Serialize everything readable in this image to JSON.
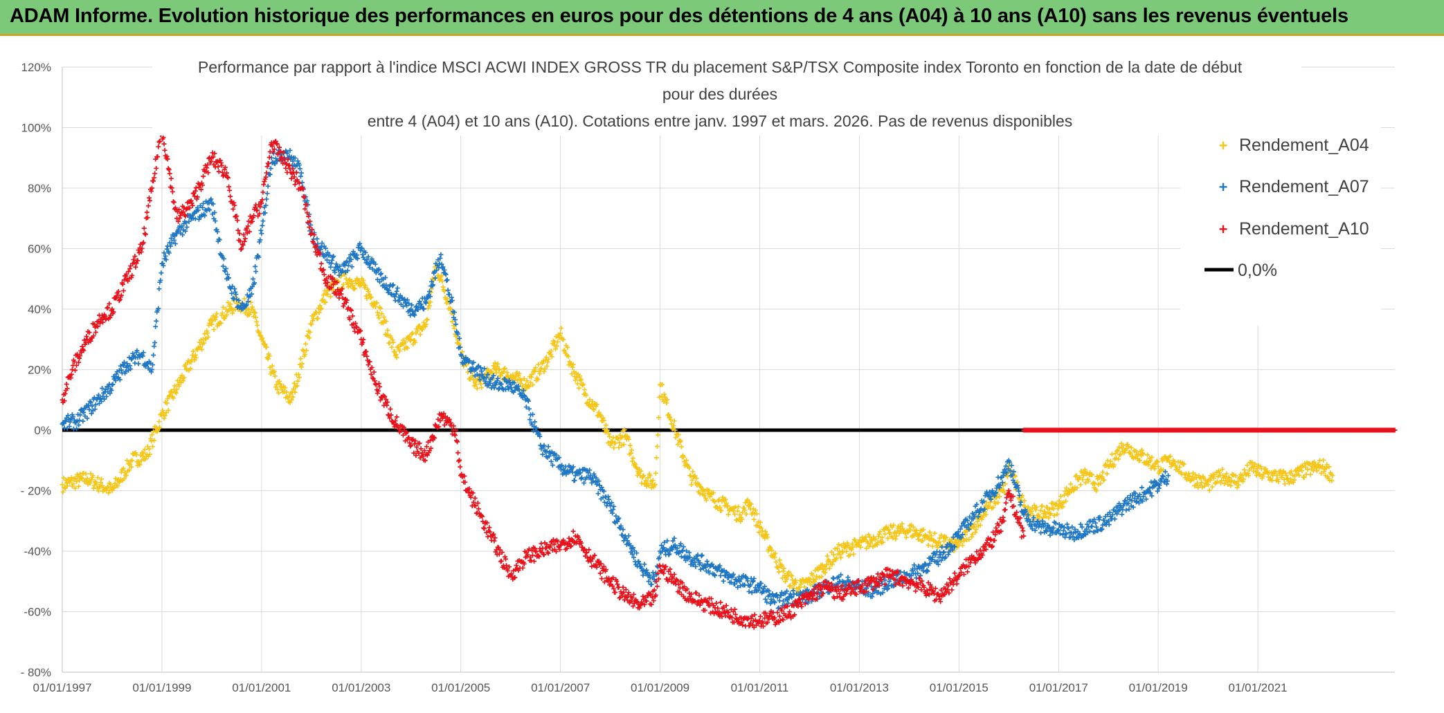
{
  "banner": {
    "title": "ADAM Informe. Evolution historique des performances en euros pour des détentions de 4 ans (A04) à 10 ans (A10) sans les revenus éventuels"
  },
  "chart_data": {
    "type": "scatter",
    "title_lines": [
      "Performance  par rapport à l'indice MSCI ACWI INDEX GROSS TR  du placement S&P/TSX Composite index Toronto en fonction de la date de début",
      "pour des durées",
      "entre 4 (A04) et 10 ans (A10). Cotations entre janv. 1997 et mars. 2026. Pas de revenus disponibles"
    ],
    "xlabel": "",
    "ylabel": "",
    "xlim": [
      1997.0,
      2023.75
    ],
    "ylim": [
      -80,
      120
    ],
    "x_ticks": [
      1997,
      1999,
      2001,
      2003,
      2005,
      2007,
      2009,
      2011,
      2013,
      2015,
      2017,
      2019,
      2021
    ],
    "x_tick_labels": [
      "01/01/1997",
      "01/01/1999",
      "01/01/2001",
      "01/01/2003",
      "01/01/2005",
      "01/01/2007",
      "01/01/2009",
      "01/01/2011",
      "01/01/2013",
      "01/01/2015",
      "01/01/2017",
      "01/01/2019",
      "01/01/2021"
    ],
    "y_ticks": [
      120,
      100,
      80,
      60,
      40,
      20,
      0,
      -20,
      -40,
      -60,
      -80
    ],
    "y_tick_labels": [
      "120%",
      "100%",
      "80%",
      "60%",
      "40%",
      "20%",
      "0%",
      "- 20%",
      "-40%",
      "-60%",
      "- 80%"
    ],
    "grid": true,
    "legend_position": "top-right",
    "reference_line": {
      "name": "0,0%",
      "y": 0,
      "color": "#000000"
    },
    "series": [
      {
        "name": "Rendement_A04",
        "color": "#f5c518",
        "x": [
          1997.0,
          1997.5,
          1998.0,
          1998.4,
          1998.7,
          1999.0,
          1999.5,
          2000.0,
          2000.2,
          2000.5,
          2000.8,
          2001.0,
          2001.3,
          2001.6,
          2002.0,
          2002.3,
          2002.7,
          2003.0,
          2003.3,
          2003.7,
          2004.0,
          2004.3,
          2004.5,
          2004.8,
          2005.0,
          2005.3,
          2005.7,
          2006.0,
          2006.3,
          2006.6,
          2006.8,
          2007.0,
          2007.2,
          2007.5,
          2007.8,
          2008.0,
          2008.3,
          2008.6,
          2008.9,
          2009.0,
          2009.3,
          2009.6,
          2010.0,
          2010.3,
          2010.6,
          2010.8,
          2011.0,
          2011.3,
          2011.5,
          2011.8,
          2012.0,
          2012.3,
          2012.6,
          2013.0,
          2013.3,
          2013.6,
          2014.0,
          2014.3,
          2014.6,
          2015.0,
          2015.3,
          2015.6,
          2015.9,
          2016.0,
          2016.3,
          2016.6,
          2016.9,
          2017.0,
          2017.2,
          2017.5,
          2017.8,
          2018.0,
          2018.3,
          2018.6,
          2019.0,
          2019.3,
          2019.6,
          2020.0,
          2020.3,
          2020.6,
          2020.9,
          2021.0,
          2021.3,
          2021.6,
          2022.0,
          2022.3,
          2022.5
        ],
        "y": [
          -18,
          -16,
          -20,
          -10,
          -8,
          5,
          20,
          35,
          38,
          42,
          40,
          30,
          15,
          10,
          35,
          45,
          50,
          48,
          42,
          25,
          30,
          35,
          55,
          40,
          25,
          15,
          20,
          18,
          15,
          20,
          25,
          32,
          22,
          12,
          5,
          -5,
          -2,
          -15,
          -18,
          15,
          0,
          -15,
          -22,
          -25,
          -28,
          -24,
          -32,
          -42,
          -48,
          -52,
          -50,
          -45,
          -40,
          -38,
          -36,
          -34,
          -33,
          -35,
          -37,
          -38,
          -32,
          -25,
          -20,
          -12,
          -25,
          -28,
          -26,
          -25,
          -20,
          -15,
          -18,
          -12,
          -5,
          -8,
          -12,
          -10,
          -15,
          -18,
          -15,
          -17,
          -12,
          -14,
          -15,
          -16,
          -13,
          -12,
          -15
        ]
      },
      {
        "name": "Rendement_A07",
        "color": "#1f77c4",
        "x": [
          1997.0,
          1997.3,
          1997.6,
          1998.0,
          1998.3,
          1998.6,
          1998.8,
          1999.0,
          1999.3,
          1999.6,
          2000.0,
          2000.3,
          2000.6,
          2000.8,
          2001.0,
          2001.2,
          2001.5,
          2001.8,
          2002.0,
          2002.3,
          2002.6,
          2003.0,
          2003.3,
          2003.7,
          2004.0,
          2004.3,
          2004.6,
          2004.9,
          2005.0,
          2005.3,
          2005.7,
          2006.0,
          2006.3,
          2006.6,
          2007.0,
          2007.3,
          2007.6,
          2008.0,
          2008.3,
          2008.6,
          2008.9,
          2009.0,
          2009.3,
          2009.6,
          2010.0,
          2010.3,
          2010.6,
          2011.0,
          2011.3,
          2011.6,
          2012.0,
          2012.3,
          2012.6,
          2013.0,
          2013.3,
          2013.6,
          2014.0,
          2014.3,
          2014.6,
          2015.0,
          2015.3,
          2015.6,
          2015.9,
          2016.0,
          2016.3,
          2016.6,
          2017.0,
          2017.3,
          2017.6,
          2018.0,
          2018.3,
          2018.6,
          2019.0,
          2019.2
        ],
        "y": [
          2,
          3,
          8,
          15,
          22,
          25,
          20,
          55,
          65,
          70,
          75,
          50,
          40,
          45,
          65,
          90,
          92,
          85,
          65,
          58,
          52,
          60,
          52,
          45,
          40,
          42,
          58,
          35,
          25,
          20,
          15,
          15,
          10,
          -5,
          -12,
          -15,
          -15,
          -25,
          -35,
          -45,
          -50,
          -40,
          -38,
          -42,
          -45,
          -48,
          -50,
          -52,
          -57,
          -55,
          -55,
          -52,
          -50,
          -52,
          -53,
          -50,
          -48,
          -45,
          -42,
          -35,
          -28,
          -22,
          -15,
          -10,
          -28,
          -32,
          -33,
          -34,
          -32,
          -30,
          -25,
          -22,
          -18,
          -15
        ]
      },
      {
        "name": "Rendement_A10",
        "color": "#e8111a",
        "x": [
          1997.0,
          1997.2,
          1997.5,
          1997.8,
          1998.0,
          1998.3,
          1998.6,
          1998.8,
          1999.0,
          1999.3,
          1999.6,
          2000.0,
          2000.3,
          2000.6,
          2000.8,
          2001.0,
          2001.2,
          2001.5,
          2001.8,
          2002.0,
          2002.3,
          2002.6,
          2003.0,
          2003.3,
          2003.6,
          2004.0,
          2004.3,
          2004.6,
          2004.9,
          2005.0,
          2005.3,
          2005.6,
          2006.0,
          2006.3,
          2006.6,
          2007.0,
          2007.3,
          2007.6,
          2008.0,
          2008.3,
          2008.6,
          2008.9,
          2009.0,
          2009.3,
          2009.6,
          2010.0,
          2010.3,
          2010.6,
          2011.0,
          2011.3,
          2011.6,
          2012.0,
          2012.3,
          2012.6,
          2013.0,
          2013.3,
          2013.6,
          2014.0,
          2014.3,
          2014.6,
          2015.0,
          2015.3,
          2015.6,
          2015.9,
          2016.0,
          2016.3
        ],
        "y": [
          10,
          20,
          30,
          38,
          40,
          50,
          60,
          80,
          100,
          70,
          75,
          90,
          85,
          60,
          70,
          75,
          95,
          88,
          80,
          65,
          50,
          45,
          30,
          15,
          5,
          -5,
          -8,
          5,
          0,
          -15,
          -25,
          -35,
          -48,
          -42,
          -40,
          -38,
          -35,
          -42,
          -50,
          -55,
          -58,
          -55,
          -45,
          -50,
          -55,
          -58,
          -60,
          -62,
          -63,
          -62,
          -60,
          -55,
          -52,
          -54,
          -52,
          -50,
          -48,
          -50,
          -52,
          -55,
          -48,
          -42,
          -38,
          -30,
          -20,
          -35
        ]
      },
      {
        "name": "Rendement_A10 (0%)",
        "color": "#e8111a",
        "x": [
          2016.3,
          2023.75
        ],
        "y": [
          0,
          0
        ]
      }
    ]
  },
  "legend": {
    "items": [
      {
        "label": "Rendement_A04",
        "color": "#f5c518",
        "marker": "plus"
      },
      {
        "label": "Rendement_A07",
        "color": "#1f77c4",
        "marker": "plus"
      },
      {
        "label": "Rendement_A10",
        "color": "#e8111a",
        "marker": "plus"
      },
      {
        "label": "0,0%",
        "color": "#000000",
        "marker": "line"
      }
    ]
  }
}
